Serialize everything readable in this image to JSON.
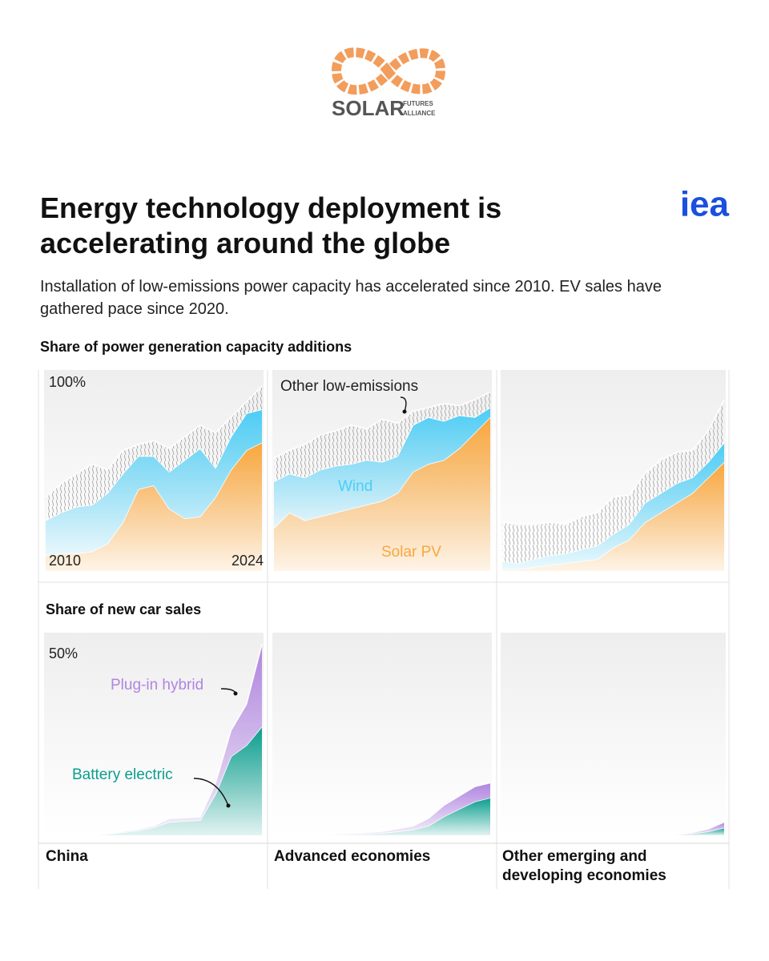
{
  "header": {
    "logo_text": "SOLAR",
    "logo_sub_1": "FUTURES",
    "logo_sub_2": "ALLIANCE",
    "brand": "iea"
  },
  "title": "Energy technology deployment is accelerating around the globe",
  "subtitle": "Installation of low-emissions power capacity has accelerated since 2010. EV sales have gathered pace since 2020.",
  "regions": [
    "China",
    "Advanced economies",
    "Other emerging and developing economies"
  ],
  "chart_data": [
    {
      "type": "area",
      "stacked": true,
      "title": "Share of power generation capacity additions",
      "x": [
        2010,
        2011,
        2012,
        2013,
        2014,
        2015,
        2016,
        2017,
        2018,
        2019,
        2020,
        2021,
        2022,
        2023,
        2024
      ],
      "xticks": [
        2010,
        2024
      ],
      "ylim": [
        0,
        100
      ],
      "yticks": [
        {
          "value": 100,
          "label": "100%"
        }
      ],
      "series": [
        {
          "name": "Solar PV",
          "color": "#f9a73e",
          "values": [
            [
              8,
              9,
              9,
              10,
              14,
              25,
              42,
              44,
              32,
              27,
              28,
              38,
              52,
              62,
              66
            ],
            [
              22,
              30,
              26,
              28,
              30,
              32,
              34,
              36,
              40,
              51,
              55,
              57,
              63,
              71,
              79
            ],
            [
              1,
              1,
              2,
              3,
              4,
              5,
              6,
              12,
              16,
              25,
              30,
              35,
              40,
              48,
              56
            ]
          ]
        },
        {
          "name": "Wind",
          "color": "#4dcdf5",
          "values": [
            [
              18,
              21,
              24,
              24,
              26,
              25,
              17,
              15,
              19,
              30,
              35,
              15,
              17,
              19,
              17
            ],
            [
              24,
              20,
              22,
              24,
              24,
              23,
              23,
              20,
              19,
              24,
              24,
              20,
              17,
              8,
              5
            ],
            [
              4,
              3,
              4,
              5,
              5,
              6,
              7,
              7,
              8,
              10,
              10,
              10,
              8,
              8,
              10
            ]
          ]
        },
        {
          "name": "Other low-emissions",
          "color": "#9a9a9a",
          "hatch": true,
          "values": [
            [
              12,
              15,
              17,
              21,
              12,
              12,
              6,
              8,
              12,
              12,
              12,
              18,
              10,
              6,
              12
            ],
            [
              12,
              12,
              17,
              18,
              18,
              20,
              16,
              22,
              17,
              7,
              5,
              9,
              5,
              9,
              8
            ],
            [
              20,
              20,
              18,
              17,
              15,
              17,
              17,
              19,
              15,
              15,
              17,
              16,
              14,
              16,
              22
            ]
          ]
        }
      ]
    },
    {
      "type": "area",
      "stacked": true,
      "title": "Share of new car sales",
      "x": [
        2010,
        2011,
        2012,
        2013,
        2014,
        2015,
        2016,
        2017,
        2018,
        2019,
        2020,
        2021,
        2022,
        2023,
        2024
      ],
      "ylim": [
        0,
        53
      ],
      "yticks": [
        {
          "value": 50,
          "label": "50%"
        }
      ],
      "series": [
        {
          "name": "Battery electric",
          "color": "#0a9e8e",
          "values": [
            [
              0,
              0,
              0,
              0.1,
              0.3,
              0.8,
              1.3,
              2.1,
              3.5,
              3.8,
              4,
              11,
              21,
              24,
              29
            ],
            [
              0,
              0,
              0,
              0.1,
              0.2,
              0.3,
              0.4,
              0.6,
              1,
              1.5,
              2.5,
              5,
              7,
              9,
              10
            ],
            [
              0,
              0,
              0,
              0,
              0,
              0,
              0,
              0,
              0,
              0,
              0.1,
              0.2,
              0.5,
              1,
              2
            ]
          ]
        },
        {
          "name": "Plug-in hybrid",
          "color": "#b085e0",
          "values": [
            [
              0,
              0,
              0,
              0,
              0.1,
              0.3,
              0.4,
              0.5,
              1,
              0.9,
              1,
              3,
              7,
              11,
              22
            ],
            [
              0,
              0,
              0,
              0.1,
              0.2,
              0.3,
              0.4,
              0.5,
              0.8,
              1,
              2,
              3,
              3.5,
              4,
              4
            ],
            [
              0,
              0,
              0,
              0,
              0,
              0,
              0,
              0,
              0,
              0,
              0,
              0.1,
              0.3,
              0.7,
              1.5
            ]
          ]
        }
      ]
    }
  ]
}
